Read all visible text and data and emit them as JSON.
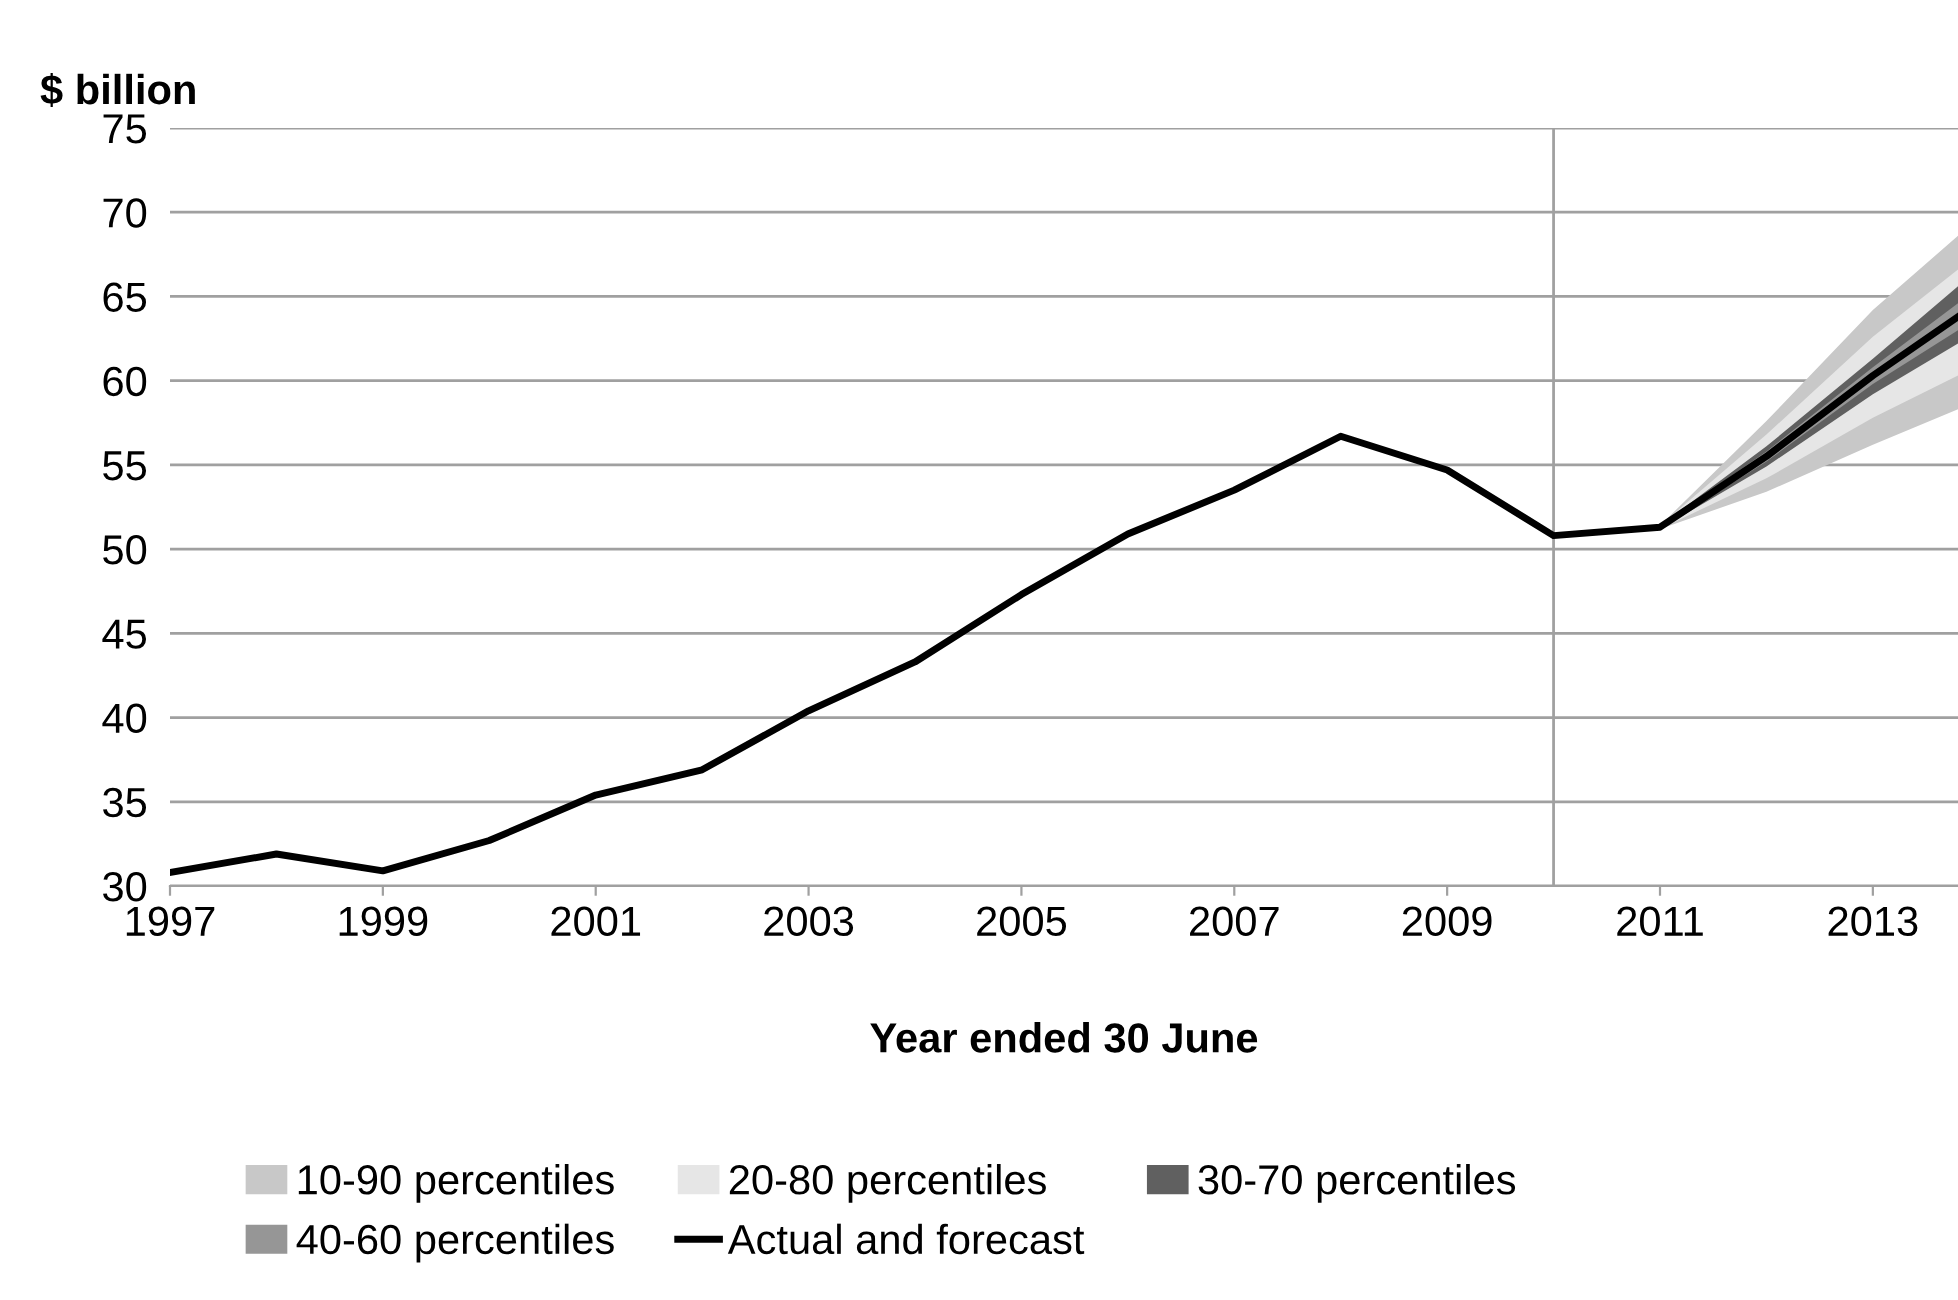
{
  "chart_data": {
    "type": "line",
    "ylabel": "$ billion",
    "xlabel": "Year ended 30 June",
    "xlim": [
      1997,
      2013.8
    ],
    "xticks": [
      1997,
      1999,
      2001,
      2003,
      2005,
      2007,
      2009,
      2011,
      2013
    ],
    "ylim": [
      30,
      75
    ],
    "yticks": [
      30,
      35,
      40,
      45,
      50,
      55,
      60,
      65,
      70,
      75
    ],
    "grid": "y",
    "legend": "bottom",
    "ref_lines": [
      {
        "axis": "x",
        "value": 2010,
        "color": "#a0a0a0"
      }
    ],
    "series": [
      {
        "name": "10-90 percentiles",
        "color": "#c8c8c8",
        "x": [
          2011,
          2012,
          2013,
          2013.8
        ],
        "values": [
          null,
          null,
          null,
          null
        ],
        "lower": [
          51.2,
          53.4,
          56.2,
          58.3
        ],
        "upper": [
          51.4,
          57.6,
          64.2,
          68.6
        ]
      },
      {
        "name": "20-80 percentiles",
        "color": "#e6e6e6",
        "x": [
          2011,
          2012,
          2013,
          2013.8
        ],
        "values": [
          null,
          null,
          null,
          null
        ],
        "lower": [
          51.2,
          54.2,
          57.8,
          60.3
        ],
        "upper": [
          51.4,
          56.8,
          62.6,
          66.6
        ]
      },
      {
        "name": "30-70 percentiles",
        "color": "#606060",
        "x": [
          2011,
          2012,
          2013,
          2013.8
        ],
        "values": [
          null,
          null,
          null,
          null
        ],
        "lower": [
          51.2,
          54.9,
          59.2,
          62.2
        ],
        "upper": [
          51.4,
          56.1,
          61.3,
          65.6
        ]
      },
      {
        "name": "40-60 percentiles",
        "color": "#969696",
        "x": [
          2011,
          2012,
          2013,
          2013.8
        ],
        "values": [
          null,
          null,
          null,
          null
        ],
        "lower": [
          51.2,
          55.2,
          59.8,
          63.0
        ],
        "upper": [
          51.4,
          55.8,
          60.8,
          64.6
        ]
      },
      {
        "name": "Actual and forecast",
        "type": "line",
        "color": "#000000",
        "x": [
          1997,
          1998,
          1999,
          2000,
          2001,
          2002,
          2003,
          2004,
          2005,
          2006,
          2007,
          2008,
          2009,
          2010,
          2011,
          2012,
          2013,
          2013.8
        ],
        "values": [
          30.8,
          31.9,
          30.9,
          32.7,
          35.4,
          36.9,
          40.4,
          43.3,
          47.3,
          50.9,
          53.5,
          56.7,
          54.7,
          50.8,
          51.3,
          55.5,
          60.3,
          63.8
        ]
      }
    ]
  }
}
